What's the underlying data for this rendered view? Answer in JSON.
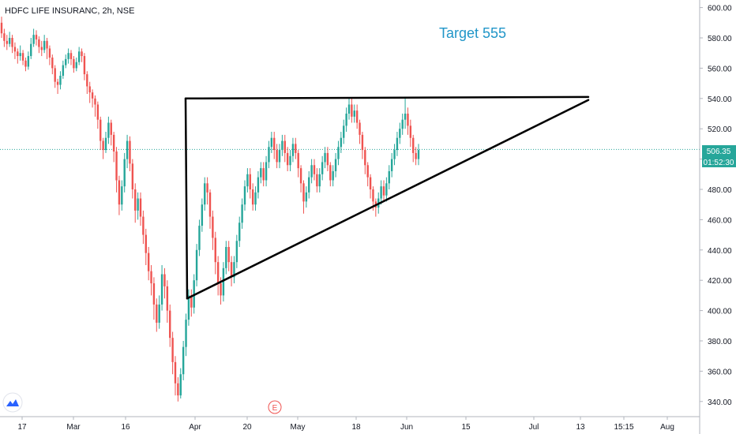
{
  "header": {
    "title": "HDFC LIFE INSURANC, 2h, NSE"
  },
  "annotation": {
    "text": "Target 555",
    "color": "#2196c8"
  },
  "current_price": {
    "label": "506.35",
    "value": 506.35,
    "countdown": "01:52:30",
    "color": "#26a69a"
  },
  "earnings_marker": {
    "label": "E",
    "color": "#ef5350"
  },
  "logo": {
    "name": "tradingview-logo-icon"
  },
  "colors": {
    "up": "#26a69a",
    "down": "#ef5350",
    "line": "#000000",
    "axis": "#b2b5be",
    "text": "#131722"
  },
  "chart_data": {
    "type": "candlestick",
    "y_axis": {
      "min": 330,
      "max": 605,
      "ticks": [
        600,
        580,
        560,
        540,
        520,
        500,
        480,
        460,
        440,
        420,
        400,
        380,
        360,
        340
      ],
      "tick_labels": [
        "600.00",
        "580.00",
        "560.00",
        "540.00",
        "520.00",
        "500.00",
        "480.00",
        "460.00",
        "440.00",
        "420.00",
        "400.00",
        "380.00",
        "360.00",
        "340.00"
      ]
    },
    "x_axis": {
      "ticks": [
        "17",
        "Mar",
        "16",
        "Apr",
        "20",
        "May",
        "18",
        "Jun",
        "15",
        "Jul",
        "13",
        "15:15",
        "Aug"
      ]
    },
    "series": [
      {
        "candles": [
          [
            590,
            583,
            594,
            580
          ],
          [
            583,
            578,
            586,
            574
          ],
          [
            578,
            576,
            582,
            572
          ],
          [
            576,
            580,
            584,
            574
          ],
          [
            580,
            574,
            582,
            570
          ],
          [
            574,
            571,
            577,
            566
          ],
          [
            571,
            568,
            573,
            563
          ],
          [
            568,
            570,
            575,
            565
          ],
          [
            570,
            565,
            572,
            562
          ],
          [
            565,
            561,
            567,
            558
          ],
          [
            561,
            568,
            571,
            559
          ],
          [
            568,
            576,
            580,
            566
          ],
          [
            576,
            582,
            586,
            574
          ],
          [
            582,
            579,
            585,
            575
          ],
          [
            579,
            574,
            581,
            570
          ],
          [
            574,
            572,
            578,
            568
          ],
          [
            572,
            578,
            582,
            570
          ],
          [
            578,
            573,
            580,
            566
          ],
          [
            573,
            567,
            575,
            562
          ],
          [
            567,
            560,
            569,
            556
          ],
          [
            560,
            551,
            562,
            547
          ],
          [
            551,
            549,
            553,
            543
          ],
          [
            549,
            555,
            558,
            546
          ],
          [
            555,
            562,
            565,
            553
          ],
          [
            562,
            566,
            569,
            560
          ],
          [
            566,
            570,
            573,
            563
          ],
          [
            570,
            566,
            572,
            562
          ],
          [
            566,
            560,
            568,
            557
          ],
          [
            560,
            564,
            567,
            558
          ],
          [
            564,
            571,
            574,
            562
          ],
          [
            571,
            568,
            573,
            564
          ],
          [
            568,
            556,
            570,
            552
          ],
          [
            556,
            548,
            558,
            543
          ],
          [
            548,
            544,
            551,
            537
          ],
          [
            544,
            540,
            546,
            534
          ],
          [
            540,
            536,
            542,
            528
          ],
          [
            536,
            526,
            538,
            520
          ],
          [
            526,
            512,
            528,
            506
          ],
          [
            512,
            506,
            514,
            500
          ],
          [
            506,
            514,
            518,
            504
          ],
          [
            514,
            524,
            528,
            510
          ],
          [
            524,
            516,
            526,
            509
          ],
          [
            516,
            505,
            518,
            498
          ],
          [
            505,
            486,
            508,
            478
          ],
          [
            486,
            470,
            489,
            463
          ],
          [
            470,
            482,
            486,
            466
          ],
          [
            482,
            500,
            504,
            478
          ],
          [
            500,
            512,
            516,
            494
          ],
          [
            512,
            497,
            515,
            492
          ],
          [
            497,
            480,
            500,
            474
          ],
          [
            480,
            466,
            484,
            458
          ],
          [
            466,
            474,
            478,
            460
          ],
          [
            474,
            462,
            478,
            456
          ],
          [
            462,
            450,
            466,
            444
          ],
          [
            450,
            438,
            454,
            430
          ],
          [
            438,
            426,
            442,
            420
          ],
          [
            426,
            418,
            430,
            410
          ],
          [
            418,
            404,
            422,
            394
          ],
          [
            404,
            392,
            408,
            386
          ],
          [
            392,
            404,
            410,
            388
          ],
          [
            404,
            424,
            430,
            400
          ],
          [
            424,
            416,
            428,
            408
          ],
          [
            416,
            400,
            420,
            392
          ],
          [
            400,
            382,
            404,
            376
          ],
          [
            382,
            366,
            386,
            358
          ],
          [
            366,
            352,
            370,
            344
          ],
          [
            352,
            344,
            356,
            340
          ],
          [
            344,
            358,
            362,
            342
          ],
          [
            358,
            376,
            380,
            354
          ],
          [
            376,
            394,
            398,
            370
          ],
          [
            394,
            410,
            414,
            390
          ],
          [
            410,
            402,
            414,
            396
          ],
          [
            402,
            420,
            424,
            398
          ],
          [
            420,
            440,
            444,
            416
          ],
          [
            440,
            456,
            460,
            436
          ],
          [
            456,
            470,
            474,
            452
          ],
          [
            470,
            484,
            488,
            466
          ],
          [
            484,
            478,
            488,
            470
          ],
          [
            478,
            462,
            480,
            454
          ],
          [
            462,
            448,
            466,
            440
          ],
          [
            448,
            432,
            452,
            424
          ],
          [
            432,
            418,
            436,
            410
          ],
          [
            418,
            410,
            422,
            404
          ],
          [
            410,
            428,
            432,
            406
          ],
          [
            428,
            442,
            446,
            424
          ],
          [
            442,
            432,
            446,
            426
          ],
          [
            432,
            422,
            436,
            416
          ],
          [
            422,
            432,
            436,
            418
          ],
          [
            432,
            446,
            450,
            428
          ],
          [
            446,
            458,
            462,
            442
          ],
          [
            458,
            470,
            474,
            454
          ],
          [
            470,
            482,
            486,
            466
          ],
          [
            482,
            490,
            494,
            478
          ],
          [
            490,
            480,
            494,
            474
          ],
          [
            480,
            470,
            484,
            466
          ],
          [
            470,
            478,
            482,
            466
          ],
          [
            478,
            488,
            492,
            474
          ],
          [
            488,
            494,
            498,
            484
          ],
          [
            494,
            486,
            498,
            482
          ],
          [
            486,
            498,
            502,
            482
          ],
          [
            498,
            508,
            512,
            494
          ],
          [
            508,
            514,
            518,
            504
          ],
          [
            514,
            506,
            518,
            500
          ],
          [
            506,
            498,
            510,
            494
          ],
          [
            498,
            506,
            510,
            494
          ],
          [
            506,
            512,
            516,
            502
          ],
          [
            512,
            504,
            516,
            498
          ],
          [
            504,
            496,
            508,
            492
          ],
          [
            496,
            502,
            506,
            492
          ],
          [
            502,
            510,
            514,
            498
          ],
          [
            510,
            504,
            514,
            500
          ],
          [
            504,
            494,
            506,
            488
          ],
          [
            494,
            484,
            496,
            478
          ],
          [
            484,
            472,
            486,
            464
          ],
          [
            472,
            478,
            482,
            468
          ],
          [
            478,
            488,
            492,
            474
          ],
          [
            488,
            496,
            500,
            484
          ],
          [
            496,
            490,
            500,
            486
          ],
          [
            490,
            482,
            494,
            478
          ],
          [
            482,
            490,
            494,
            478
          ],
          [
            490,
            498,
            502,
            486
          ],
          [
            498,
            504,
            508,
            494
          ],
          [
            504,
            496,
            508,
            492
          ],
          [
            496,
            486,
            498,
            482
          ],
          [
            486,
            492,
            496,
            482
          ],
          [
            492,
            500,
            504,
            488
          ],
          [
            500,
            508,
            512,
            496
          ],
          [
            508,
            514,
            518,
            504
          ],
          [
            514,
            522,
            526,
            510
          ],
          [
            522,
            530,
            534,
            518
          ],
          [
            530,
            536,
            540,
            526
          ],
          [
            536,
            528,
            540,
            524
          ],
          [
            528,
            532,
            536,
            524
          ],
          [
            532,
            524,
            536,
            520
          ],
          [
            524,
            516,
            526,
            510
          ],
          [
            516,
            506,
            518,
            500
          ],
          [
            506,
            496,
            508,
            490
          ],
          [
            496,
            488,
            498,
            482
          ],
          [
            488,
            480,
            490,
            474
          ],
          [
            480,
            472,
            482,
            466
          ],
          [
            472,
            468,
            474,
            462
          ],
          [
            468,
            474,
            478,
            464
          ],
          [
            474,
            482,
            486,
            470
          ],
          [
            482,
            476,
            486,
            472
          ],
          [
            476,
            484,
            488,
            472
          ],
          [
            484,
            492,
            496,
            480
          ],
          [
            492,
            500,
            504,
            488
          ],
          [
            500,
            506,
            510,
            496
          ],
          [
            506,
            514,
            518,
            502
          ],
          [
            514,
            520,
            524,
            510
          ],
          [
            520,
            526,
            530,
            516
          ],
          [
            526,
            530,
            540,
            520
          ],
          [
            530,
            522,
            534,
            516
          ],
          [
            522,
            514,
            526,
            508
          ],
          [
            514,
            504,
            516,
            498
          ],
          [
            504,
            500,
            508,
            496
          ],
          [
            500,
            506,
            510,
            496
          ]
        ]
      }
    ],
    "lines": [
      {
        "name": "resistance",
        "points": [
          [
            "2020-03-30",
            540
          ],
          [
            "2020-07-15",
            541
          ]
        ]
      },
      {
        "name": "left-leg",
        "points": [
          [
            "2020-03-30",
            540
          ],
          [
            "2020-03-31",
            408
          ]
        ]
      },
      {
        "name": "support",
        "points": [
          [
            "2020-03-31",
            408
          ],
          [
            "2020-07-15",
            539
          ]
        ]
      }
    ]
  }
}
